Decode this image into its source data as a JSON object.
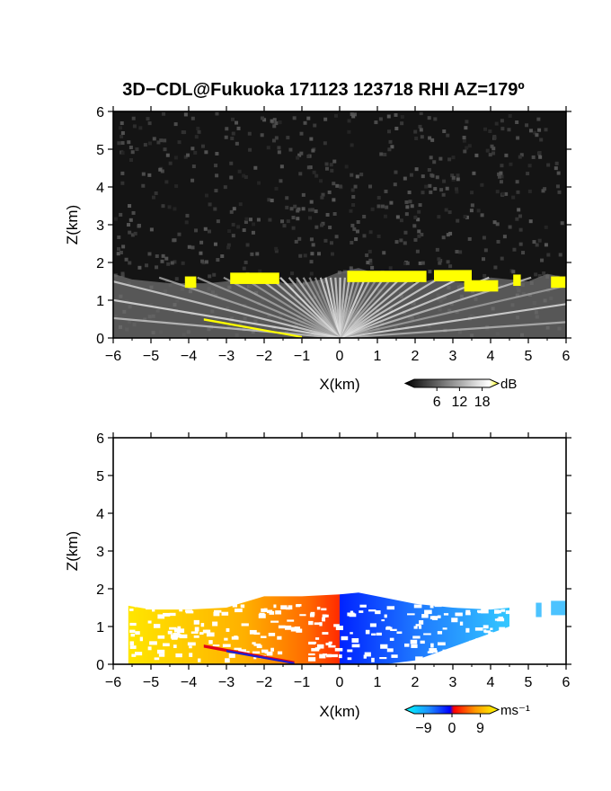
{
  "figure": {
    "title": "3D−CDL@Fukuoka 171123 123718 RHI AZ=179º"
  },
  "chart_data": [
    {
      "type": "heatmap",
      "panel": "signal-intensity",
      "xlabel": "X(km)",
      "ylabel": "Z(km)",
      "xlim": [
        -6,
        6
      ],
      "ylim": [
        0,
        6
      ],
      "xticks": [
        "−6",
        "−5",
        "−4",
        "−3",
        "−2",
        "−1",
        "0",
        "1",
        "2",
        "3",
        "4",
        "5",
        "6"
      ],
      "yticks": [
        "0",
        "1",
        "2",
        "3",
        "4",
        "5",
        "6"
      ],
      "colorbar": {
        "unit": "dB",
        "ticks": [
          "6",
          "12",
          "18"
        ],
        "tick_values": [
          6,
          12,
          18
        ],
        "range": [
          0,
          20
        ],
        "colors": [
          "#000000",
          "#ffffff",
          "#ffff00"
        ]
      },
      "features": {
        "cloud_base_top_km": [
          [
            -6,
            1.7
          ],
          [
            -5.5,
            1.55
          ],
          [
            -5,
            1.5
          ],
          [
            -4.5,
            1.45
          ],
          [
            -4,
            1.45
          ],
          [
            -3.5,
            1.45
          ],
          [
            -3,
            1.5
          ],
          [
            -2.5,
            1.5
          ],
          [
            -2,
            1.7
          ],
          [
            -1.5,
            1.45
          ],
          [
            -1,
            1.45
          ],
          [
            -0.5,
            1.55
          ],
          [
            0,
            1.75
          ],
          [
            0.5,
            1.85
          ],
          [
            1,
            1.7
          ],
          [
            1.5,
            1.65
          ],
          [
            2,
            1.45
          ],
          [
            2.5,
            1.55
          ],
          [
            3,
            1.5
          ],
          [
            3.5,
            1.45
          ],
          [
            4,
            1.6
          ],
          [
            4.5,
            1.55
          ],
          [
            5,
            1.5
          ],
          [
            5.5,
            1.7
          ],
          [
            6,
            1.6
          ]
        ],
        "strong_echo_segments": [
          [
            -4.1,
            -3.8,
            1.45
          ],
          [
            -2.9,
            -1.6,
            1.55
          ],
          [
            0.2,
            2.3,
            1.6
          ],
          [
            2.5,
            3.5,
            1.62
          ],
          [
            3.3,
            4.2,
            1.35
          ],
          [
            4.6,
            4.8,
            1.5
          ],
          [
            5.6,
            6.0,
            1.45
          ]
        ]
      }
    },
    {
      "type": "heatmap",
      "panel": "doppler-velocity",
      "xlabel": "X(km)",
      "ylabel": "Z(km)",
      "xlim": [
        -6,
        6
      ],
      "ylim": [
        0,
        6
      ],
      "xticks": [
        "−6",
        "−5",
        "−4",
        "−3",
        "−2",
        "−1",
        "0",
        "1",
        "2",
        "3",
        "4",
        "5",
        "6"
      ],
      "yticks": [
        "0",
        "1",
        "2",
        "3",
        "4",
        "5",
        "6"
      ],
      "colorbar": {
        "unit": "ms⁻¹",
        "ticks": [
          "−9",
          "0",
          "9"
        ],
        "tick_values": [
          -9,
          0,
          9
        ],
        "range": [
          -12,
          12
        ],
        "colors": [
          "#00ffff",
          "#0000ff",
          "#ff0000",
          "#ff8000",
          "#ffff00"
        ]
      },
      "features": {
        "velocity_sign": "negative (blue) for X > 0, positive (red-yellow) for X < 0",
        "echo_top_km": [
          [
            -5.6,
            1.55
          ],
          [
            -5,
            1.45
          ],
          [
            -4,
            1.45
          ],
          [
            -3,
            1.5
          ],
          [
            -2,
            1.8
          ],
          [
            -1,
            1.8
          ],
          [
            0,
            1.85
          ],
          [
            0.5,
            1.9
          ],
          [
            1,
            1.8
          ],
          [
            2,
            1.6
          ],
          [
            3,
            1.5
          ],
          [
            4,
            1.45
          ],
          [
            4.5,
            1.5
          ]
        ],
        "echo_segments": [
          [
            5.2,
            5.35,
            1.45
          ],
          [
            5.6,
            6.0,
            1.5
          ]
        ]
      }
    }
  ]
}
